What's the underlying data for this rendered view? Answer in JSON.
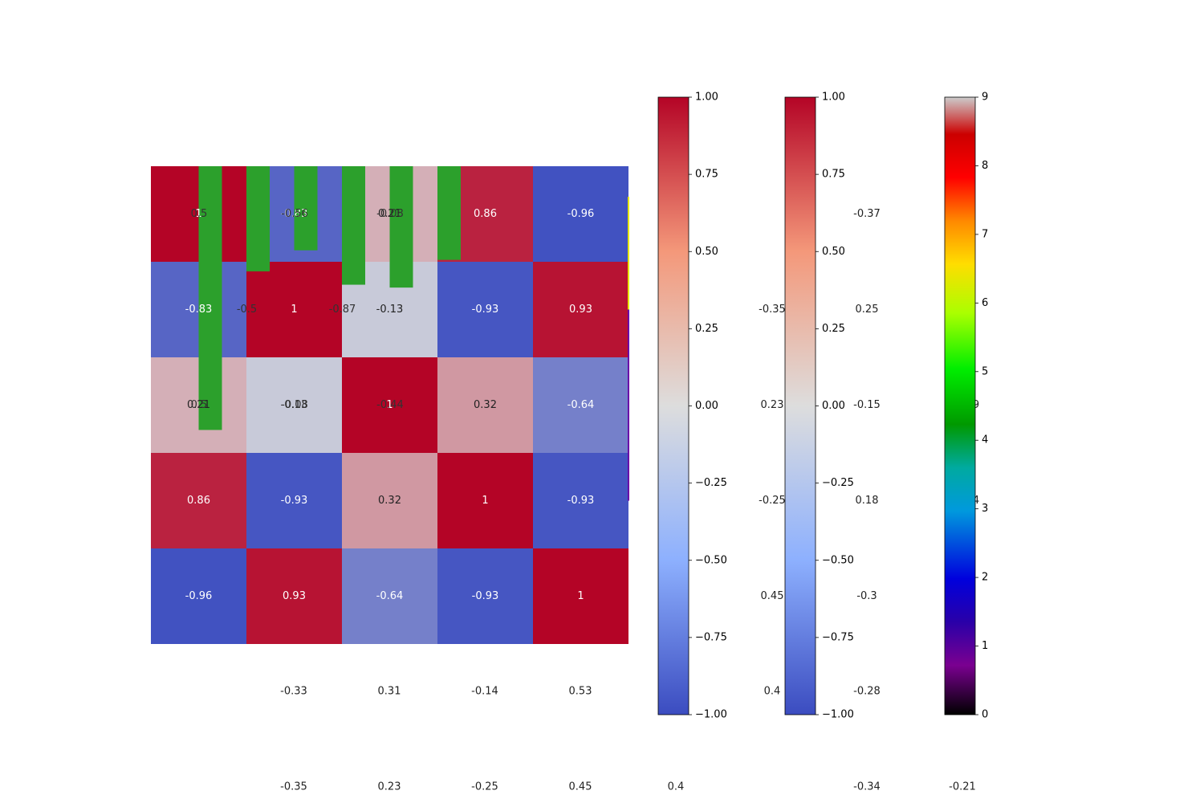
{
  "chart_data": {
    "type": "heatmap",
    "title": "",
    "xlabel": "",
    "ylabel": "",
    "grid": false,
    "matrix": [
      [
        1,
        -0.83,
        0.21,
        0.86,
        -0.96
      ],
      [
        -0.83,
        1,
        -0.13,
        -0.93,
        0.93
      ],
      [
        0.21,
        -0.13,
        1,
        0.32,
        -0.64
      ],
      [
        0.86,
        -0.93,
        0.32,
        1,
        -0.93
      ],
      [
        -0.96,
        0.93,
        -0.64,
        -0.93,
        1
      ]
    ],
    "overlay_labels": [
      [
        0.5,
        -0.56,
        -0.08
      ],
      [
        -0.5,
        -0.87
      ],
      [
        0.5,
        -0.08,
        -0.44
      ]
    ],
    "color_scale": {
      "min": -1,
      "max": 1,
      "low_color": "#3b4cc0",
      "mid_color": "#dddddd",
      "high_color": "#b40426"
    },
    "colorbar_ticks": [
      "1.00",
      "0.75",
      "0.50",
      "0.25",
      "0.00",
      "−0.25",
      "−0.50",
      "−0.75",
      "−1.00"
    ],
    "colorbar_ticks_2": [
      "1.00",
      "0.75",
      "0.50",
      "0.25",
      "0.00",
      "−0.25",
      "−0.50",
      "−0.75",
      "−1.00"
    ],
    "spectral_colorbar": {
      "ticks": [
        "9",
        "8",
        "7",
        "6",
        "5",
        "4",
        "3",
        "2",
        "1",
        "0"
      ],
      "range": [
        0,
        9
      ]
    },
    "green_bars": [
      0.0,
      2.76,
      1.1,
      0.88,
      1.24,
      1.27,
      0.98
    ],
    "side_values": [
      {
        "row": 0,
        "values": [
          "",
          "",
          "-0.37",
          ""
        ]
      },
      {
        "row": 1,
        "values": [
          "",
          "-0.35",
          "0.25",
          ""
        ]
      },
      {
        "row": 2,
        "values": [
          "",
          "0.23",
          "-0.15",
          "9"
        ]
      },
      {
        "row": 3,
        "values": [
          "",
          "-0.25",
          "0.18",
          "4"
        ]
      },
      {
        "row": 4,
        "values": [
          "",
          "0.45",
          "-0.3",
          ""
        ]
      },
      {
        "row": 5,
        "values": [
          "",
          "0.4",
          "-0.28",
          ""
        ]
      }
    ],
    "bottom_row_1": [
      "-0.33",
      "0.31",
      "-0.14",
      "0.53"
    ],
    "bottom_row_2": [
      "-0.35",
      "0.23",
      "-0.25",
      "0.45",
      "0.4",
      "-0.34",
      "-0.21"
    ]
  }
}
